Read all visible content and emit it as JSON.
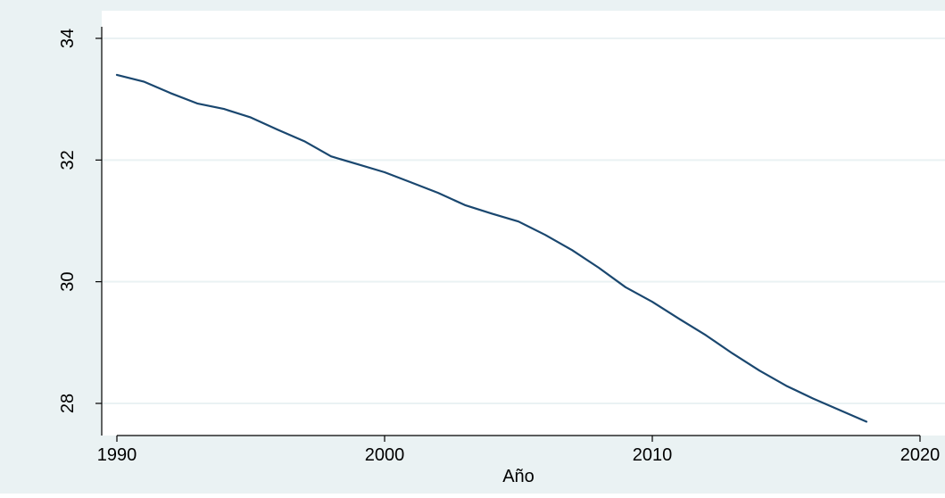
{
  "chart_data": {
    "type": "line",
    "title": "",
    "xlabel": "Año",
    "ylabel": "",
    "xlim": [
      1990,
      2020
    ],
    "ylim": [
      27.5,
      34.2
    ],
    "x_ticks": [
      1990,
      2000,
      2010,
      2020
    ],
    "x_tick_labels": [
      "1990",
      "2000",
      "2010",
      "2020"
    ],
    "y_ticks": [
      28,
      30,
      32,
      34
    ],
    "y_tick_labels": [
      "28",
      "30",
      "32",
      "34"
    ],
    "grid": "horizontal",
    "legend": "none",
    "colors": {
      "outer_background": "#eaf2f3",
      "plot_background": "#ffffff",
      "grid": "#eaf2f3",
      "line": "#1a476f",
      "axis": "#000000"
    },
    "series": [
      {
        "x": [
          1990,
          1991,
          1992,
          1993,
          1994,
          1995,
          1996,
          1997,
          1998,
          1999,
          2000,
          2001,
          2002,
          2003,
          2004,
          2005,
          2006,
          2007,
          2008,
          2009,
          2010,
          2011,
          2012,
          2013,
          2014,
          2015,
          2016,
          2017,
          2018
        ],
        "y": [
          33.4,
          33.29,
          33.1,
          32.93,
          32.84,
          32.7,
          32.5,
          32.31,
          32.06,
          31.93,
          31.8,
          31.63,
          31.46,
          31.26,
          31.12,
          30.99,
          30.77,
          30.52,
          30.23,
          29.91,
          29.67,
          29.39,
          29.12,
          28.82,
          28.54,
          28.29,
          28.08,
          27.89,
          27.7
        ]
      }
    ]
  }
}
